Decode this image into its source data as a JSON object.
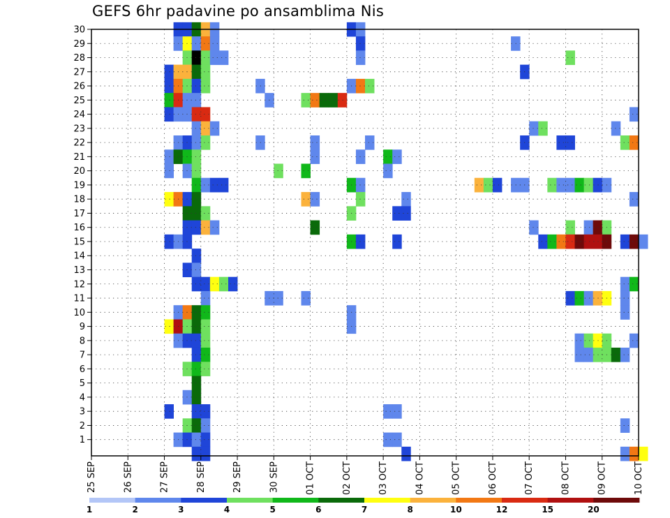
{
  "title": "GEFS 6hr padavine po ansamblima Nis",
  "chart_data": {
    "type": "heatmap",
    "title": "GEFS 6hr padavine po ansamblima Nis",
    "x_labels": [
      "25 SEP",
      "26 SEP",
      "27 SEP",
      "28 SEP",
      "29 SEP",
      "30 SEP",
      "01 OCT",
      "02 OCT",
      "03 OCT",
      "04 OCT",
      "05 OCT",
      "06 OCT",
      "07 OCT",
      "08 OCT",
      "09 OCT",
      "10 OCT"
    ],
    "y_labels": [
      "1",
      "2",
      "3",
      "4",
      "5",
      "6",
      "7",
      "8",
      "9",
      "10",
      "11",
      "12",
      "13",
      "14",
      "15",
      "16",
      "17",
      "18",
      "19",
      "20",
      "21",
      "22",
      "23",
      "24",
      "25",
      "26",
      "27",
      "28",
      "29",
      "30"
    ],
    "grid": true,
    "colorbar": {
      "colors": [
        "#b3c6f7",
        "#5f87ec",
        "#1f45d8",
        "#6fe05f",
        "#10b81a",
        "#0a6a0a",
        "#ffff10",
        "#fbb23c",
        "#f27814",
        "#d92a12",
        "#b01010",
        "#6e0a0a"
      ],
      "labels": [
        "1",
        "2",
        "3",
        "4",
        "5",
        "6",
        "7",
        "8",
        "10",
        "12",
        "15",
        "20"
      ]
    },
    "cells": [
      [
        30,
        2.25,
        2
      ],
      [
        30,
        2.5,
        2
      ],
      [
        30,
        2.75,
        5
      ],
      [
        30,
        3.0,
        7
      ],
      [
        30,
        3.25,
        1
      ],
      [
        30,
        7.0,
        2
      ],
      [
        30,
        7.25,
        1
      ],
      [
        29,
        2.25,
        1
      ],
      [
        29,
        2.5,
        6
      ],
      [
        29,
        2.75,
        1
      ],
      [
        29,
        3.0,
        8
      ],
      [
        29,
        3.25,
        1
      ],
      [
        29,
        7.25,
        2
      ],
      [
        29,
        11.5,
        1
      ],
      [
        28,
        2.5,
        3
      ],
      [
        28,
        2.75,
        12
      ],
      [
        28,
        3.0,
        3
      ],
      [
        28,
        3.25,
        1
      ],
      [
        28,
        3.5,
        1
      ],
      [
        28,
        7.25,
        1
      ],
      [
        28,
        13.0,
        3
      ],
      [
        27,
        2.0,
        2
      ],
      [
        27,
        2.25,
        7
      ],
      [
        27,
        2.5,
        7
      ],
      [
        27,
        2.75,
        5
      ],
      [
        27,
        3.0,
        3
      ],
      [
        27,
        11.75,
        2
      ],
      [
        26,
        2.0,
        2
      ],
      [
        26,
        2.25,
        8
      ],
      [
        26,
        2.5,
        3
      ],
      [
        26,
        2.75,
        2
      ],
      [
        26,
        3.0,
        3
      ],
      [
        26,
        4.5,
        1
      ],
      [
        26,
        7.0,
        1
      ],
      [
        26,
        7.25,
        8
      ],
      [
        26,
        7.5,
        3
      ],
      [
        25,
        2.0,
        4
      ],
      [
        25,
        2.25,
        9
      ],
      [
        25,
        2.5,
        1
      ],
      [
        25,
        2.75,
        1
      ],
      [
        25,
        4.75,
        1
      ],
      [
        25,
        5.75,
        3
      ],
      [
        25,
        6.0,
        8
      ],
      [
        25,
        6.25,
        5
      ],
      [
        25,
        6.5,
        5
      ],
      [
        25,
        6.75,
        9
      ],
      [
        24,
        2.0,
        2
      ],
      [
        24,
        2.25,
        1
      ],
      [
        24,
        2.5,
        1
      ],
      [
        24,
        2.75,
        9
      ],
      [
        24,
        3.0,
        9
      ],
      [
        24,
        14.75,
        1
      ],
      [
        23,
        2.75,
        1
      ],
      [
        23,
        3.0,
        7
      ],
      [
        23,
        3.25,
        1
      ],
      [
        23,
        12.0,
        1
      ],
      [
        23,
        12.25,
        3
      ],
      [
        23,
        14.25,
        1
      ],
      [
        22,
        2.25,
        1
      ],
      [
        22,
        2.5,
        2
      ],
      [
        22,
        2.75,
        1
      ],
      [
        22,
        3.0,
        3
      ],
      [
        22,
        4.5,
        1
      ],
      [
        22,
        6.0,
        1
      ],
      [
        22,
        7.5,
        1
      ],
      [
        22,
        11.75,
        2
      ],
      [
        22,
        12.75,
        2
      ],
      [
        22,
        13.0,
        2
      ],
      [
        22,
        14.5,
        3
      ],
      [
        22,
        14.75,
        8
      ],
      [
        21,
        2.0,
        1
      ],
      [
        21,
        2.25,
        5
      ],
      [
        21,
        2.5,
        4
      ],
      [
        21,
        2.75,
        3
      ],
      [
        21,
        6.0,
        1
      ],
      [
        21,
        7.25,
        1
      ],
      [
        21,
        8.0,
        4
      ],
      [
        21,
        8.25,
        1
      ],
      [
        20,
        2.0,
        1
      ],
      [
        20,
        2.5,
        1
      ],
      [
        20,
        2.75,
        3
      ],
      [
        20,
        5.0,
        3
      ],
      [
        20,
        5.75,
        4
      ],
      [
        20,
        8.0,
        1
      ],
      [
        19,
        2.75,
        4
      ],
      [
        19,
        3.0,
        1
      ],
      [
        19,
        3.25,
        2
      ],
      [
        19,
        3.5,
        2
      ],
      [
        19,
        7.0,
        4
      ],
      [
        19,
        7.25,
        1
      ],
      [
        19,
        10.5,
        7
      ],
      [
        19,
        10.75,
        3
      ],
      [
        19,
        11.0,
        2
      ],
      [
        19,
        11.5,
        1
      ],
      [
        19,
        11.75,
        1
      ],
      [
        19,
        12.5,
        3
      ],
      [
        19,
        12.75,
        1
      ],
      [
        19,
        13.0,
        1
      ],
      [
        19,
        13.25,
        4
      ],
      [
        19,
        13.5,
        3
      ],
      [
        19,
        13.75,
        2
      ],
      [
        19,
        14.0,
        1
      ],
      [
        18,
        2.0,
        6
      ],
      [
        18,
        2.25,
        8
      ],
      [
        18,
        2.5,
        2
      ],
      [
        18,
        2.75,
        5
      ],
      [
        18,
        5.75,
        7
      ],
      [
        18,
        6.0,
        1
      ],
      [
        18,
        7.25,
        3
      ],
      [
        18,
        8.5,
        1
      ],
      [
        18,
        14.75,
        1
      ],
      [
        17,
        2.5,
        5
      ],
      [
        17,
        2.75,
        5
      ],
      [
        17,
        3.0,
        3
      ],
      [
        17,
        7.0,
        3
      ],
      [
        17,
        8.25,
        2
      ],
      [
        17,
        8.5,
        2
      ],
      [
        16,
        2.5,
        2
      ],
      [
        16,
        2.75,
        2
      ],
      [
        16,
        3.0,
        7
      ],
      [
        16,
        3.25,
        1
      ],
      [
        16,
        6.0,
        5
      ],
      [
        16,
        12.0,
        1
      ],
      [
        16,
        13.0,
        3
      ],
      [
        16,
        13.5,
        1
      ],
      [
        16,
        13.75,
        11
      ],
      [
        16,
        14.0,
        3
      ],
      [
        15,
        2.0,
        2
      ],
      [
        15,
        2.25,
        1
      ],
      [
        15,
        2.5,
        2
      ],
      [
        15,
        7.0,
        4
      ],
      [
        15,
        7.25,
        2
      ],
      [
        15,
        8.25,
        2
      ],
      [
        15,
        12.25,
        2
      ],
      [
        15,
        12.5,
        4
      ],
      [
        15,
        12.75,
        8
      ],
      [
        15,
        13.0,
        9
      ],
      [
        15,
        13.25,
        11
      ],
      [
        15,
        13.5,
        10
      ],
      [
        15,
        13.75,
        10
      ],
      [
        15,
        14.0,
        11
      ],
      [
        15,
        14.5,
        2
      ],
      [
        15,
        14.75,
        11
      ],
      [
        15,
        15.0,
        1
      ],
      [
        14,
        2.75,
        2
      ],
      [
        13,
        2.5,
        2
      ],
      [
        13,
        2.75,
        1
      ],
      [
        12,
        2.75,
        2
      ],
      [
        12,
        3.0,
        2
      ],
      [
        12,
        3.25,
        6
      ],
      [
        12,
        3.5,
        3
      ],
      [
        12,
        3.75,
        2
      ],
      [
        12,
        14.5,
        1
      ],
      [
        12,
        14.75,
        4
      ],
      [
        11,
        3.0,
        1
      ],
      [
        11,
        4.75,
        1
      ],
      [
        11,
        5.0,
        1
      ],
      [
        11,
        5.75,
        1
      ],
      [
        11,
        13.0,
        2
      ],
      [
        11,
        13.25,
        4
      ],
      [
        11,
        13.5,
        1
      ],
      [
        11,
        13.75,
        7
      ],
      [
        11,
        14.0,
        6
      ],
      [
        11,
        14.5,
        1
      ],
      [
        10,
        2.25,
        1
      ],
      [
        10,
        2.5,
        8
      ],
      [
        10,
        2.75,
        5
      ],
      [
        10,
        3.0,
        4
      ],
      [
        10,
        7.0,
        1
      ],
      [
        10,
        14.5,
        1
      ],
      [
        9,
        2.0,
        6
      ],
      [
        9,
        2.25,
        10
      ],
      [
        9,
        2.5,
        3
      ],
      [
        9,
        2.75,
        5
      ],
      [
        9,
        3.0,
        3
      ],
      [
        9,
        7.0,
        1
      ],
      [
        8,
        2.25,
        1
      ],
      [
        8,
        2.5,
        2
      ],
      [
        8,
        2.75,
        2
      ],
      [
        8,
        3.0,
        3
      ],
      [
        8,
        13.25,
        1
      ],
      [
        8,
        13.5,
        3
      ],
      [
        8,
        13.75,
        6
      ],
      [
        8,
        14.0,
        3
      ],
      [
        8,
        14.75,
        1
      ],
      [
        7,
        2.75,
        2
      ],
      [
        7,
        3.0,
        4
      ],
      [
        7,
        13.25,
        1
      ],
      [
        7,
        13.5,
        1
      ],
      [
        7,
        13.75,
        3
      ],
      [
        7,
        14.0,
        3
      ],
      [
        7,
        14.25,
        5
      ],
      [
        7,
        14.5,
        1
      ],
      [
        6,
        2.5,
        3
      ],
      [
        6,
        2.75,
        4
      ],
      [
        6,
        3.0,
        3
      ],
      [
        5,
        2.75,
        5
      ],
      [
        4,
        2.5,
        1
      ],
      [
        4,
        2.75,
        5
      ],
      [
        3,
        2.0,
        2
      ],
      [
        3,
        2.75,
        2
      ],
      [
        3,
        3.0,
        2
      ],
      [
        3,
        8.0,
        1
      ],
      [
        3,
        8.25,
        1
      ],
      [
        2,
        2.5,
        3
      ],
      [
        2,
        2.75,
        5
      ],
      [
        2,
        3.0,
        1
      ],
      [
        2,
        14.5,
        1
      ],
      [
        1,
        2.25,
        1
      ],
      [
        1,
        2.5,
        2
      ],
      [
        1,
        2.75,
        1
      ],
      [
        1,
        3.0,
        2
      ],
      [
        1,
        8.0,
        1
      ],
      [
        1,
        8.25,
        1
      ],
      [
        0,
        2.75,
        2
      ],
      [
        0,
        3.0,
        2
      ],
      [
        0,
        8.5,
        2
      ],
      [
        0,
        14.5,
        1
      ],
      [
        0,
        14.75,
        8
      ],
      [
        0,
        15.0,
        6
      ]
    ]
  }
}
